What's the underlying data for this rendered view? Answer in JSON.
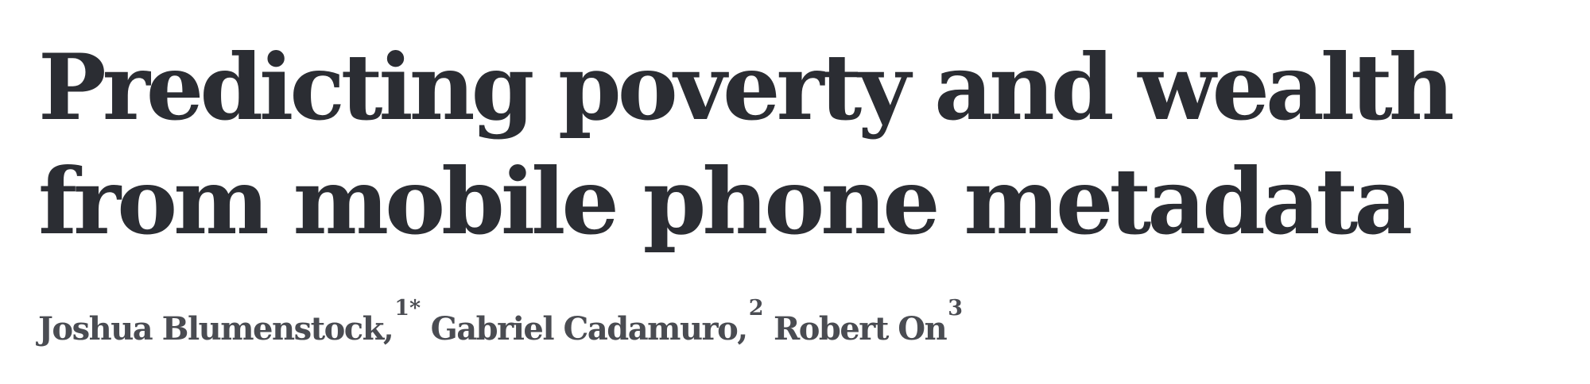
{
  "paper": {
    "title": "Predicting poverty and wealth from mobile phone metadata",
    "authors": [
      {
        "name": "Joshua Blumenstock,",
        "affiliation": "1*"
      },
      {
        "name": "Gabriel Cadamuro,",
        "affiliation": "2"
      },
      {
        "name": "Robert On",
        "affiliation": "3"
      }
    ]
  }
}
